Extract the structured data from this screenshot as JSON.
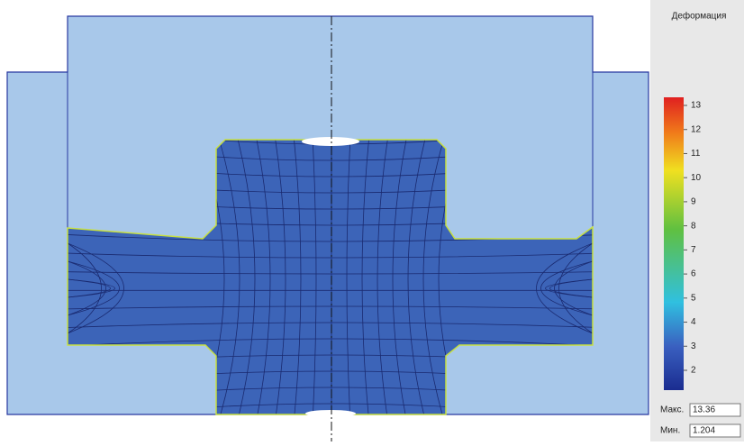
{
  "legend": {
    "title": "Деформация",
    "ticks": [
      13,
      12,
      11,
      10,
      9,
      8,
      7,
      6,
      5,
      4,
      3,
      2
    ],
    "max_label": "Макс.",
    "max_value": "13.36",
    "min_label": "Мин.",
    "min_value": "1.204"
  }
}
